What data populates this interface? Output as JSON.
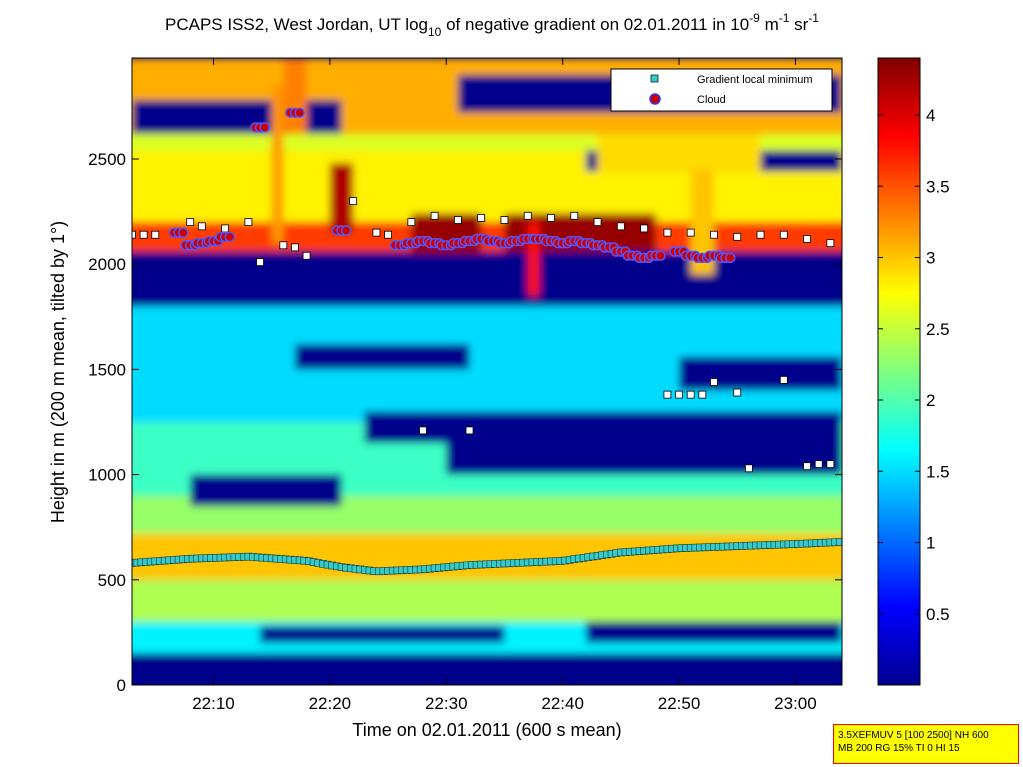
{
  "chart_data": {
    "type": "heatmap",
    "title": {
      "prefix": "PCAPS ISS2, West Jordan, UT log",
      "sub": "10",
      "middle": " of negative gradient on 02.01.2011 in 10",
      "sup1": "-9",
      "unit1": " m",
      "sup2": "-1",
      "unit2": " sr",
      "sup3": "-1"
    },
    "xlabel": "Time on 02.01.2011 (600 s mean)",
    "ylabel": "Height in m (200 m mean, tilted by 1°)",
    "xlim_minutes": [
      1323,
      1384
    ],
    "ylim": [
      0,
      2980
    ],
    "x_ticks": [
      {
        "label": "22:10",
        "minutes": 1330
      },
      {
        "label": "22:20",
        "minutes": 1340
      },
      {
        "label": "22:30",
        "minutes": 1350
      },
      {
        "label": "22:40",
        "minutes": 1360
      },
      {
        "label": "22:50",
        "minutes": 1370
      },
      {
        "label": "23:00",
        "minutes": 1380
      }
    ],
    "y_ticks": [
      0,
      500,
      1000,
      1500,
      2000,
      2500
    ],
    "colorbar": {
      "range": [
        0,
        4.4
      ],
      "ticks": [
        "0.5",
        "1",
        "1.5",
        "2",
        "2.5",
        "3",
        "3.5",
        "4"
      ],
      "tick_values": [
        0.5,
        1,
        1.5,
        2,
        2.5,
        3,
        3.5,
        4
      ],
      "colormap": "jet"
    },
    "legend": {
      "position": "top-right",
      "entries": [
        {
          "label": "Gradient local minimum",
          "marker": "square",
          "color": "#33cccc"
        },
        {
          "label": "Cloud",
          "marker": "circle",
          "color": "#cc0000"
        }
      ]
    },
    "layers": [
      {
        "y": [
          2620,
          2980
        ],
        "x": [
          1323,
          1384
        ],
        "value": 3.1
      },
      {
        "y": [
          2540,
          2620
        ],
        "x": [
          1323,
          1384
        ],
        "value": 2.6
      },
      {
        "y": [
          2200,
          2540
        ],
        "x": [
          1323,
          1384
        ],
        "value": 2.8
      },
      {
        "y": [
          2060,
          2200
        ],
        "x": [
          1323,
          1384
        ],
        "value": 3.6
      },
      {
        "y": [
          1800,
          2060
        ],
        "x": [
          1323,
          1384
        ],
        "value": 0.05
      },
      {
        "y": [
          1250,
          1800
        ],
        "x": [
          1323,
          1384
        ],
        "value": 1.5
      },
      {
        "y": [
          900,
          1250
        ],
        "x": [
          1323,
          1384
        ],
        "value": 1.9
      },
      {
        "y": [
          720,
          900
        ],
        "x": [
          1323,
          1384
        ],
        "value": 2.3
      },
      {
        "y": [
          500,
          720
        ],
        "x": [
          1323,
          1384
        ],
        "value": 3.0
      },
      {
        "y": [
          300,
          500
        ],
        "x": [
          1323,
          1384
        ],
        "value": 2.4
      },
      {
        "y": [
          150,
          300
        ],
        "x": [
          1323,
          1384
        ],
        "value": 1.6
      },
      {
        "y": [
          0,
          150
        ],
        "x": [
          1323,
          1384
        ],
        "value": 0.05
      }
    ],
    "patches": [
      {
        "x": [
          1323,
          1341
        ],
        "y": [
          2620,
          2780
        ],
        "value": 0.05
      },
      {
        "x": [
          1351,
          1384
        ],
        "y": [
          2720,
          2900
        ],
        "value": 0.05
      },
      {
        "x": [
          1362,
          1384
        ],
        "y": [
          2440,
          2540
        ],
        "value": 0.05
      },
      {
        "x": [
          1363,
          1377
        ],
        "y": [
          2440,
          2620
        ],
        "value": 2.9
      },
      {
        "x": [
          1323,
          1330
        ],
        "y": [
          1850,
          2060
        ],
        "value": 0.05
      },
      {
        "x": [
          1337,
          1352
        ],
        "y": [
          1500,
          1620
        ],
        "value": 0.05
      },
      {
        "x": [
          1343,
          1384
        ],
        "y": [
          1150,
          1300
        ],
        "value": 0.05
      },
      {
        "x": [
          1350,
          1384
        ],
        "y": [
          1000,
          1150
        ],
        "value": 0.05
      },
      {
        "x": [
          1328,
          1341
        ],
        "y": [
          850,
          1000
        ],
        "value": 0.05
      },
      {
        "x": [
          1370,
          1384
        ],
        "y": [
          1400,
          1560
        ],
        "value": 0.05
      },
      {
        "x": [
          1334,
          1355
        ],
        "y": [
          200,
          280
        ],
        "value": 0.05
      },
      {
        "x": [
          1362,
          1384
        ],
        "y": [
          200,
          300
        ],
        "value": 0.05
      },
      {
        "x": [
          1347,
          1353
        ],
        "y": [
          2050,
          2240
        ],
        "value": 4.3
      },
      {
        "x": [
          1355,
          1368
        ],
        "y": [
          2060,
          2240
        ],
        "value": 4.3
      },
      {
        "x": [
          1340,
          1342
        ],
        "y": [
          2150,
          2480
        ],
        "value": 4.2
      },
      {
        "x": [
          1335,
          1336
        ],
        "y": [
          2100,
          2850
        ],
        "value": 3.2
      },
      {
        "x": [
          1336,
          1338
        ],
        "y": [
          2620,
          2980
        ],
        "value": 3.3
      },
      {
        "x": [
          1357,
          1358
        ],
        "y": [
          1850,
          2200
        ],
        "value": 3.8
      },
      {
        "x": [
          1371,
          1373
        ],
        "y": [
          1950,
          2450
        ],
        "value": 3.0
      }
    ],
    "gradient_minimum_series": [
      {
        "x": 1323,
        "y": 580
      },
      {
        "x": 1328,
        "y": 600
      },
      {
        "x": 1333,
        "y": 610
      },
      {
        "x": 1338,
        "y": 590
      },
      {
        "x": 1341,
        "y": 560
      },
      {
        "x": 1344,
        "y": 540
      },
      {
        "x": 1348,
        "y": 550
      },
      {
        "x": 1352,
        "y": 570
      },
      {
        "x": 1356,
        "y": 580
      },
      {
        "x": 1360,
        "y": 590
      },
      {
        "x": 1365,
        "y": 630
      },
      {
        "x": 1370,
        "y": 650
      },
      {
        "x": 1375,
        "y": 660
      },
      {
        "x": 1380,
        "y": 670
      },
      {
        "x": 1384,
        "y": 680
      }
    ],
    "gradient_minimum_upper": [
      {
        "x": 1323,
        "y": 2140
      },
      {
        "x": 1324,
        "y": 2140
      },
      {
        "x": 1325,
        "y": 2140
      },
      {
        "x": 1328,
        "y": 2200
      },
      {
        "x": 1329,
        "y": 2180
      },
      {
        "x": 1331,
        "y": 2170
      },
      {
        "x": 1333,
        "y": 2200
      },
      {
        "x": 1334,
        "y": 2010
      },
      {
        "x": 1336,
        "y": 2090
      },
      {
        "x": 1337,
        "y": 2080
      },
      {
        "x": 1338,
        "y": 2040
      },
      {
        "x": 1342,
        "y": 2300
      },
      {
        "x": 1344,
        "y": 2150
      },
      {
        "x": 1345,
        "y": 2140
      },
      {
        "x": 1347,
        "y": 2200
      },
      {
        "x": 1349,
        "y": 2230
      },
      {
        "x": 1351,
        "y": 2210
      },
      {
        "x": 1353,
        "y": 2220
      },
      {
        "x": 1355,
        "y": 2210
      },
      {
        "x": 1357,
        "y": 2230
      },
      {
        "x": 1359,
        "y": 2220
      },
      {
        "x": 1361,
        "y": 2230
      },
      {
        "x": 1363,
        "y": 2200
      },
      {
        "x": 1365,
        "y": 2180
      },
      {
        "x": 1367,
        "y": 2170
      },
      {
        "x": 1369,
        "y": 2150
      },
      {
        "x": 1371,
        "y": 2150
      },
      {
        "x": 1373,
        "y": 2140
      },
      {
        "x": 1375,
        "y": 2130
      },
      {
        "x": 1377,
        "y": 2140
      },
      {
        "x": 1379,
        "y": 2140
      },
      {
        "x": 1381,
        "y": 2120
      },
      {
        "x": 1383,
        "y": 2100
      },
      {
        "x": 1369,
        "y": 1380
      },
      {
        "x": 1370,
        "y": 1380
      },
      {
        "x": 1371,
        "y": 1380
      },
      {
        "x": 1372,
        "y": 1380
      },
      {
        "x": 1373,
        "y": 1440
      },
      {
        "x": 1375,
        "y": 1390
      },
      {
        "x": 1379,
        "y": 1450
      },
      {
        "x": 1348,
        "y": 1210
      },
      {
        "x": 1352,
        "y": 1210
      },
      {
        "x": 1376,
        "y": 1030
      },
      {
        "x": 1381,
        "y": 1040
      },
      {
        "x": 1382,
        "y": 1050
      },
      {
        "x": 1383,
        "y": 1050
      }
    ],
    "cloud_series": [
      {
        "x": 1327,
        "y": 2150
      },
      {
        "x": 1328,
        "y": 2090
      },
      {
        "x": 1329,
        "y": 2100
      },
      {
        "x": 1330,
        "y": 2110
      },
      {
        "x": 1331,
        "y": 2130
      },
      {
        "x": 1334,
        "y": 2650
      },
      {
        "x": 1337,
        "y": 2720
      },
      {
        "x": 1341,
        "y": 2160
      },
      {
        "x": 1346,
        "y": 2090
      },
      {
        "x": 1347,
        "y": 2100
      },
      {
        "x": 1348,
        "y": 2110
      },
      {
        "x": 1349,
        "y": 2100
      },
      {
        "x": 1350,
        "y": 2090
      },
      {
        "x": 1351,
        "y": 2100
      },
      {
        "x": 1352,
        "y": 2110
      },
      {
        "x": 1353,
        "y": 2120
      },
      {
        "x": 1354,
        "y": 2110
      },
      {
        "x": 1355,
        "y": 2100
      },
      {
        "x": 1356,
        "y": 2110
      },
      {
        "x": 1357,
        "y": 2120
      },
      {
        "x": 1358,
        "y": 2120
      },
      {
        "x": 1359,
        "y": 2110
      },
      {
        "x": 1360,
        "y": 2100
      },
      {
        "x": 1361,
        "y": 2110
      },
      {
        "x": 1362,
        "y": 2100
      },
      {
        "x": 1363,
        "y": 2090
      },
      {
        "x": 1364,
        "y": 2080
      },
      {
        "x": 1365,
        "y": 2060
      },
      {
        "x": 1366,
        "y": 2040
      },
      {
        "x": 1367,
        "y": 2030
      },
      {
        "x": 1368,
        "y": 2040
      },
      {
        "x": 1370,
        "y": 2060
      },
      {
        "x": 1371,
        "y": 2040
      },
      {
        "x": 1372,
        "y": 2030
      },
      {
        "x": 1373,
        "y": 2040
      },
      {
        "x": 1374,
        "y": 2030
      }
    ]
  },
  "info_box": {
    "line1": "3.5XEFMUV 5 [100 2500] NH 600",
    "line2": "MB 200 RG 15% TI 0 HI 15"
  }
}
